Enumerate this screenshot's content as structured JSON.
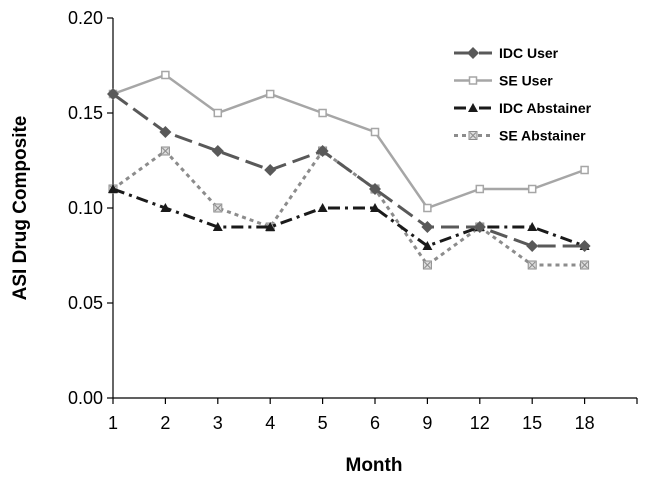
{
  "chart_data": {
    "type": "line",
    "title": "",
    "xlabel": "Month",
    "ylabel": "ASI Drug Composite",
    "categories": [
      "1",
      "2",
      "3",
      "4",
      "5",
      "6",
      "9",
      "12",
      "15",
      "18"
    ],
    "ylim": [
      0,
      0.2
    ],
    "yticks": [
      "0.00",
      "0.05",
      "0.10",
      "0.15",
      "0.20"
    ],
    "grid": false,
    "legend": "top-right",
    "series": [
      {
        "name": "IDC User",
        "values": [
          0.16,
          0.14,
          0.13,
          0.12,
          0.13,
          0.11,
          0.09,
          0.09,
          0.08,
          0.08
        ],
        "color": "#595959",
        "marker": "diamond",
        "dash": "long-dash"
      },
      {
        "name": "SE User",
        "values": [
          0.16,
          0.17,
          0.15,
          0.16,
          0.15,
          0.14,
          0.1,
          0.11,
          0.11,
          0.12
        ],
        "color": "#a6a6a6",
        "marker": "square",
        "dash": "solid"
      },
      {
        "name": "IDC Abstainer",
        "values": [
          0.11,
          0.1,
          0.09,
          0.09,
          0.1,
          0.1,
          0.08,
          0.09,
          0.09,
          0.08
        ],
        "color": "#1a1a1a",
        "marker": "triangle",
        "dash": "dash-dot"
      },
      {
        "name": "SE Abstainer",
        "values": [
          0.11,
          0.13,
          0.1,
          0.09,
          0.13,
          0.11,
          0.07,
          0.09,
          0.07,
          0.07
        ],
        "color": "#8c8c8c",
        "marker": "x-square",
        "dash": "dotted"
      }
    ]
  }
}
